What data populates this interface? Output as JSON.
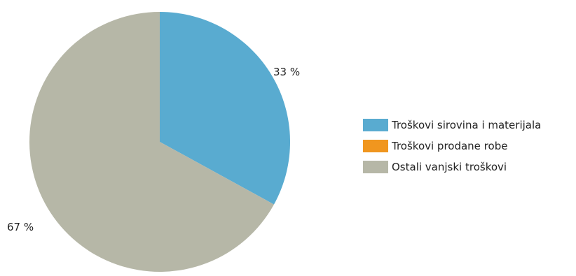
{
  "chart_data": {
    "type": "pie",
    "categories": [
      "Troškovi sirovina i materijala",
      "Troškovi prodane robe",
      "Ostali vanjski troškovi"
    ],
    "values": [
      33,
      0,
      67
    ],
    "data_labels": [
      "33 %",
      "",
      "67 %"
    ],
    "colors": [
      "#59abd0",
      "#f0961f",
      "#b6b7a7"
    ],
    "legend_position": "right",
    "title": ""
  }
}
